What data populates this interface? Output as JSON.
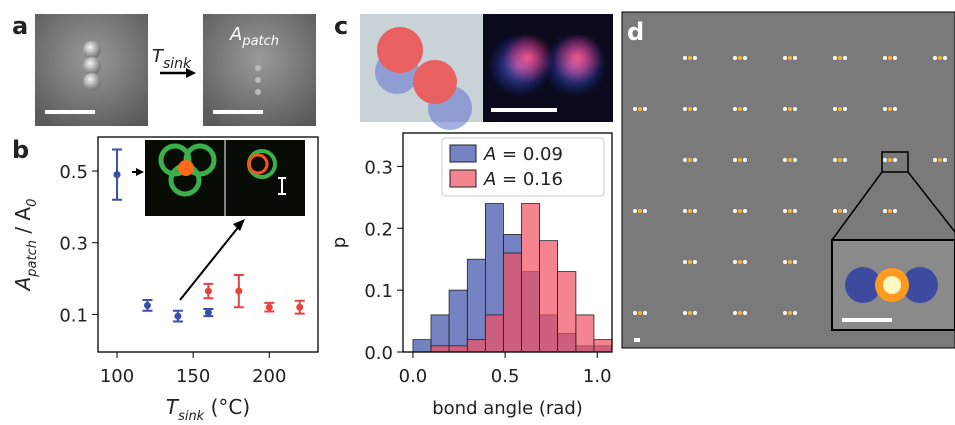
{
  "panels": {
    "labels": [
      "a",
      "b",
      "c",
      "d"
    ],
    "arrow_label": [
      "T",
      "sink"
    ],
    "image_label": [
      "A",
      "patch"
    ]
  },
  "chart_data": [
    {
      "type": "errorbar",
      "xlabel": [
        "T",
        "sink",
        " (°C)"
      ],
      "ylabel": [
        "A",
        "patch",
        " / A",
        "0"
      ],
      "xlim": [
        87.5,
        232
      ],
      "ylim": [
        -0.005,
        0.595
      ],
      "xticks": [
        100,
        150,
        200
      ],
      "yticks": [
        0.1,
        0.3,
        0.5
      ],
      "series": [
        {
          "color": "#3b4ea8",
          "x": [
            100,
            120,
            140,
            160
          ],
          "values": [
            0.49,
            0.125,
            0.095,
            0.105
          ],
          "errors": [
            0.07,
            0.015,
            0.015,
            0.01
          ]
        },
        {
          "color": "#e8423c",
          "x": [
            160,
            180,
            200,
            220
          ],
          "values": [
            0.165,
            0.165,
            0.12,
            0.12
          ],
          "errors": [
            0.02,
            0.045,
            0.012,
            0.018
          ]
        }
      ]
    },
    {
      "type": "histogram",
      "xlabel": "bond angle (rad)",
      "ylabel": "p",
      "xlim": [
        -0.054,
        1.08
      ],
      "ylim": [
        0,
        0.354
      ],
      "xticks": [
        {
          "value": 0,
          "label": "0.0"
        },
        0.5,
        {
          "value": 1,
          "label": "1.0"
        }
      ],
      "yticks": [
        {
          "value": 0,
          "label": "0.0"
        },
        0.1,
        0.2,
        0.3
      ],
      "bins": [
        0,
        0.098,
        0.196,
        0.295,
        0.393,
        0.491,
        0.589,
        0.687,
        0.785,
        0.884,
        0.982,
        1.08
      ],
      "legend": "upper right",
      "series": [
        {
          "name": [
            "A",
            " = 0.09"
          ],
          "color": "#3c4ea8",
          "values": [
            0.02,
            0.06,
            0.1,
            0.15,
            0.24,
            0.19,
            0.13,
            0.06,
            0.03,
            0.01,
            0.01
          ]
        },
        {
          "name": [
            "A",
            " = 0.16"
          ],
          "color": "#f0505f",
          "values": [
            0,
            0.01,
            0.01,
            0.02,
            0.06,
            0.16,
            0.24,
            0.18,
            0.13,
            0.06,
            0.02
          ]
        }
      ]
    }
  ]
}
